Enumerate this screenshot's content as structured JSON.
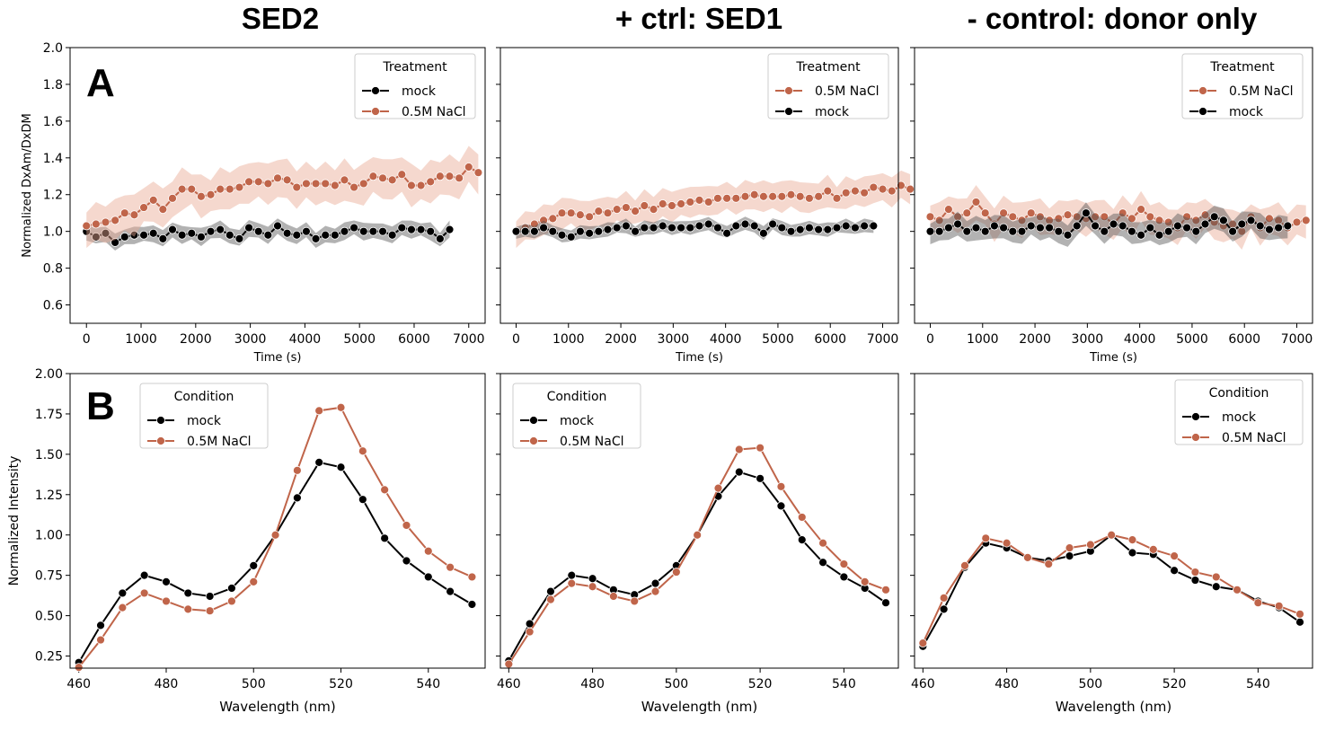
{
  "figure": {
    "column_titles": [
      "SED2",
      "+ ctrl: SED1",
      "- control: donor only"
    ],
    "row_letters": [
      "A",
      "B"
    ],
    "colors": {
      "mock": "#000000",
      "nacl": "#c0654a",
      "nacl_band": "#e8a893",
      "mock_band": "#555555"
    }
  },
  "chart_data": [
    {
      "type": "line",
      "panel": "A1",
      "xlabel": "Time (s)",
      "ylabel": "Normalized DxAm/DxDM",
      "xlim": [
        -300,
        7300
      ],
      "ylim": [
        0.5,
        2.0
      ],
      "xticks": [
        0,
        1000,
        2000,
        3000,
        4000,
        5000,
        6000,
        7000
      ],
      "yticks": [
        0.6,
        0.8,
        1.0,
        1.2,
        1.4,
        1.6,
        1.8,
        2.0
      ],
      "y_tick_labels": [
        "0.6",
        "0.8",
        "1.0",
        "1.2",
        "1.4",
        "1.6",
        "1.8",
        "2.0"
      ],
      "legend": {
        "title": "Treatment",
        "position": "top-right"
      },
      "x_start": 0,
      "x_step": 175,
      "series": [
        {
          "name": "mock",
          "color": "#000000",
          "values": [
            1.0,
            0.97,
            0.99,
            0.94,
            0.97,
            0.98,
            0.98,
            0.99,
            0.96,
            1.01,
            0.98,
            0.99,
            0.97,
            1.0,
            1.01,
            0.98,
            0.96,
            1.02,
            1.0,
            0.98,
            1.03,
            0.99,
            0.98,
            1.0,
            0.96,
            0.98,
            0.98,
            1.0,
            1.02,
            1.0,
            1.0,
            1.0,
            0.98,
            1.02,
            1.01,
            1.01,
            1.0,
            0.96,
            1.01
          ],
          "band_width": 0.05
        },
        {
          "name": "0.5M NaCl",
          "color": "#c0654a",
          "values": [
            1.03,
            1.04,
            1.05,
            1.06,
            1.1,
            1.09,
            1.13,
            1.17,
            1.12,
            1.18,
            1.23,
            1.23,
            1.19,
            1.2,
            1.23,
            1.23,
            1.24,
            1.27,
            1.27,
            1.26,
            1.29,
            1.28,
            1.24,
            1.26,
            1.26,
            1.26,
            1.25,
            1.28,
            1.24,
            1.26,
            1.3,
            1.29,
            1.28,
            1.31,
            1.25,
            1.25,
            1.27,
            1.3,
            1.3,
            1.29,
            1.35,
            1.32
          ],
          "band_width": 0.12
        }
      ]
    },
    {
      "type": "line",
      "panel": "A2",
      "xlabel": "Time (s)",
      "ylabel": "",
      "xlim": [
        -300,
        7300
      ],
      "ylim": [
        0.5,
        2.0
      ],
      "xticks": [
        0,
        1000,
        2000,
        3000,
        4000,
        5000,
        6000,
        7000
      ],
      "yticks": [
        0.6,
        0.8,
        1.0,
        1.2,
        1.4,
        1.6,
        1.8,
        2.0
      ],
      "y_tick_labels": [],
      "legend": {
        "title": "Treatment",
        "position": "top-right"
      },
      "x_start": 0,
      "x_step": 175,
      "series": [
        {
          "name": "0.5M NaCl",
          "color": "#c0654a",
          "values": [
            1.0,
            1.02,
            1.04,
            1.06,
            1.07,
            1.1,
            1.1,
            1.09,
            1.08,
            1.11,
            1.1,
            1.12,
            1.13,
            1.11,
            1.14,
            1.12,
            1.15,
            1.14,
            1.15,
            1.16,
            1.17,
            1.16,
            1.18,
            1.18,
            1.18,
            1.19,
            1.2,
            1.19,
            1.19,
            1.19,
            1.2,
            1.19,
            1.18,
            1.19,
            1.22,
            1.18,
            1.21,
            1.22,
            1.21,
            1.24,
            1.23,
            1.22,
            1.25,
            1.23
          ],
          "band_width": 0.09
        },
        {
          "name": "mock",
          "color": "#000000",
          "values": [
            1.0,
            1.0,
            1.0,
            1.02,
            1.0,
            0.98,
            0.97,
            1.0,
            0.99,
            1.0,
            1.01,
            1.02,
            1.03,
            1.0,
            1.02,
            1.02,
            1.03,
            1.02,
            1.02,
            1.02,
            1.03,
            1.04,
            1.02,
            0.99,
            1.03,
            1.04,
            1.03,
            0.99,
            1.04,
            1.02,
            1.0,
            1.01,
            1.02,
            1.01,
            1.01,
            1.02,
            1.03,
            1.02,
            1.03,
            1.03
          ],
          "band_width": 0.04
        }
      ]
    },
    {
      "type": "line",
      "panel": "A3",
      "xlabel": "Time (s)",
      "ylabel": "",
      "xlim": [
        -300,
        7300
      ],
      "ylim": [
        0.5,
        2.0
      ],
      "xticks": [
        0,
        1000,
        2000,
        3000,
        4000,
        5000,
        6000,
        7000
      ],
      "yticks": [
        0.6,
        0.8,
        1.0,
        1.2,
        1.4,
        1.6,
        1.8,
        2.0
      ],
      "y_tick_labels": [],
      "legend": {
        "title": "Treatment",
        "position": "top-right"
      },
      "x_start": 0,
      "x_step": 175,
      "series": [
        {
          "name": "0.5M NaCl",
          "color": "#c0654a",
          "values": [
            1.08,
            1.06,
            1.12,
            1.08,
            1.1,
            1.16,
            1.1,
            1.04,
            1.1,
            1.08,
            1.06,
            1.1,
            1.08,
            1.06,
            1.07,
            1.09,
            1.08,
            1.07,
            1.08,
            1.08,
            1.04,
            1.1,
            1.07,
            1.12,
            1.08,
            1.06,
            1.05,
            1.02,
            1.08,
            1.06,
            1.09,
            1.05,
            1.03,
            1.04,
            1.0,
            1.08,
            1.02,
            1.07,
            1.06,
            1.02,
            1.05,
            1.06
          ],
          "band_width": 0.1
        },
        {
          "name": "mock",
          "color": "#000000",
          "values": [
            1.0,
            1.0,
            1.02,
            1.04,
            1.0,
            1.02,
            1.0,
            1.03,
            1.02,
            1.0,
            1.0,
            1.03,
            1.02,
            1.02,
            1.0,
            0.98,
            1.03,
            1.1,
            1.03,
            1.0,
            1.04,
            1.03,
            1.0,
            0.98,
            1.02,
            0.98,
            1.0,
            1.03,
            1.02,
            1.0,
            1.04,
            1.08,
            1.06,
            1.0,
            1.04,
            1.06,
            1.03,
            1.01,
            1.02,
            1.03
          ],
          "band_width": 0.07
        }
      ]
    },
    {
      "type": "line",
      "panel": "B1",
      "xlabel": "Wavelength (nm)",
      "ylabel": "Normalized Intensity",
      "xlim": [
        458,
        553
      ],
      "ylim": [
        0.175,
        2.0
      ],
      "xticks": [
        460,
        480,
        500,
        520,
        540
      ],
      "yticks": [
        0.25,
        0.5,
        0.75,
        1.0,
        1.25,
        1.5,
        1.75,
        2.0
      ],
      "y_tick_labels": [
        "0.25",
        "0.50",
        "0.75",
        "1.00",
        "1.25",
        "1.50",
        "1.75",
        "2.00"
      ],
      "legend": {
        "title": "Condition",
        "position": "top-left"
      },
      "x": [
        460,
        465,
        470,
        475,
        480,
        485,
        490,
        495,
        500,
        505,
        510,
        515,
        520,
        525,
        530,
        535,
        540,
        545,
        550
      ],
      "series": [
        {
          "name": "mock",
          "color": "#000000",
          "values": [
            0.21,
            0.44,
            0.64,
            0.75,
            0.71,
            0.64,
            0.62,
            0.67,
            0.81,
            1.0,
            1.23,
            1.45,
            1.42,
            1.22,
            0.98,
            0.84,
            0.74,
            0.65,
            0.57
          ]
        },
        {
          "name": "0.5M NaCl",
          "color": "#c0654a",
          "values": [
            0.18,
            0.35,
            0.55,
            0.64,
            0.59,
            0.54,
            0.53,
            0.59,
            0.71,
            1.0,
            1.4,
            1.77,
            1.79,
            1.52,
            1.28,
            1.06,
            0.9,
            0.8,
            0.74
          ]
        }
      ]
    },
    {
      "type": "line",
      "panel": "B2",
      "xlabel": "Wavelength (nm)",
      "ylabel": "",
      "xlim": [
        458,
        553
      ],
      "ylim": [
        0.175,
        2.0
      ],
      "xticks": [
        460,
        480,
        500,
        520,
        540
      ],
      "yticks": [
        0.25,
        0.5,
        0.75,
        1.0,
        1.25,
        1.5,
        1.75,
        2.0
      ],
      "y_tick_labels": [],
      "legend": {
        "title": "Condition",
        "position": "top-left"
      },
      "x": [
        460,
        465,
        470,
        475,
        480,
        485,
        490,
        495,
        500,
        505,
        510,
        515,
        520,
        525,
        530,
        535,
        540,
        545,
        550
      ],
      "series": [
        {
          "name": "mock",
          "color": "#000000",
          "values": [
            0.22,
            0.45,
            0.65,
            0.75,
            0.73,
            0.66,
            0.63,
            0.7,
            0.81,
            1.0,
            1.24,
            1.39,
            1.35,
            1.18,
            0.97,
            0.83,
            0.74,
            0.67,
            0.58
          ]
        },
        {
          "name": "0.5M NaCl",
          "color": "#c0654a",
          "values": [
            0.2,
            0.4,
            0.6,
            0.7,
            0.68,
            0.62,
            0.59,
            0.65,
            0.77,
            1.0,
            1.29,
            1.53,
            1.54,
            1.3,
            1.11,
            0.95,
            0.82,
            0.71,
            0.66
          ]
        }
      ]
    },
    {
      "type": "line",
      "panel": "B3",
      "xlabel": "Wavelength (nm)",
      "ylabel": "",
      "xlim": [
        458,
        553
      ],
      "ylim": [
        0.175,
        2.0
      ],
      "xticks": [
        460,
        480,
        500,
        520,
        540
      ],
      "yticks": [
        0.25,
        0.5,
        0.75,
        1.0,
        1.25,
        1.5,
        1.75,
        2.0
      ],
      "y_tick_labels": [],
      "legend": {
        "title": "Condition",
        "position": "top-right"
      },
      "x": [
        460,
        465,
        470,
        475,
        480,
        485,
        490,
        495,
        500,
        505,
        510,
        515,
        520,
        525,
        530,
        535,
        540,
        545,
        550
      ],
      "series": [
        {
          "name": "mock",
          "color": "#000000",
          "values": [
            0.31,
            0.54,
            0.8,
            0.95,
            0.92,
            0.86,
            0.84,
            0.87,
            0.9,
            1.0,
            0.89,
            0.88,
            0.78,
            0.72,
            0.68,
            0.66,
            0.59,
            0.55,
            0.46
          ]
        },
        {
          "name": "0.5M NaCl",
          "color": "#c0654a",
          "values": [
            0.33,
            0.61,
            0.81,
            0.98,
            0.95,
            0.86,
            0.82,
            0.92,
            0.94,
            1.0,
            0.97,
            0.91,
            0.87,
            0.77,
            0.74,
            0.66,
            0.58,
            0.56,
            0.51
          ]
        }
      ]
    }
  ]
}
